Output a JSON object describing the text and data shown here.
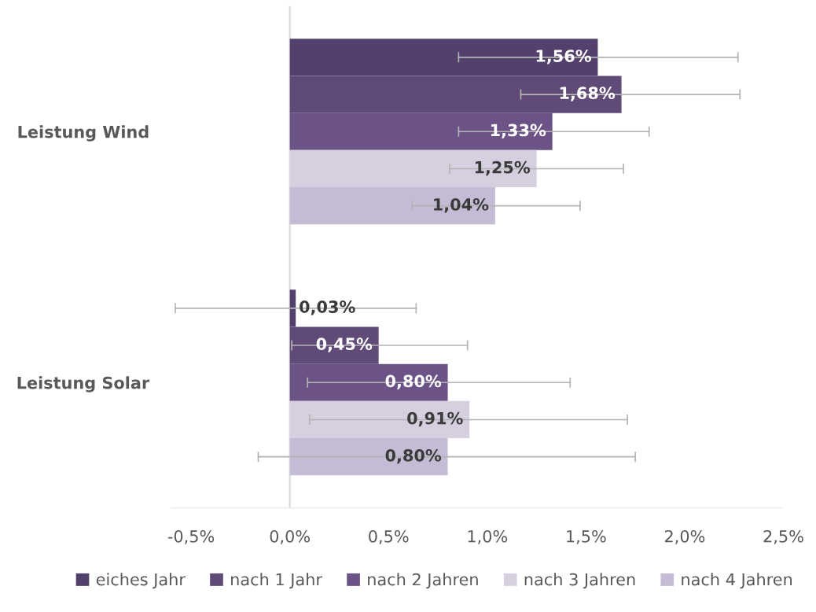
{
  "chart_data": {
    "type": "bar",
    "orientation": "horizontal",
    "categories": [
      "Leistung Wind",
      "Leistung Solar"
    ],
    "series": [
      {
        "name": "eiches Jahr",
        "color": "#54406c",
        "values": [
          1.56,
          0.03
        ],
        "value_labels": [
          "1,56%",
          "0,03%"
        ],
        "errors": [
          [
            0.855,
            2.27
          ],
          [
            -0.58,
            0.64
          ]
        ]
      },
      {
        "name": "nach 1 Jahr",
        "color": "#604a78",
        "values": [
          1.68,
          0.45
        ],
        "value_labels": [
          "1,68%",
          "0,45%"
        ],
        "errors": [
          [
            1.17,
            2.28
          ],
          [
            0.01,
            0.9
          ]
        ]
      },
      {
        "name": "nach 2 Jahren",
        "color": "#6b5287",
        "values": [
          1.33,
          0.8
        ],
        "value_labels": [
          "1,33%",
          "0,80%"
        ],
        "errors": [
          [
            0.855,
            1.82
          ],
          [
            0.09,
            1.42
          ]
        ]
      },
      {
        "name": "nach 3 Jahren",
        "color": "#d6cfe0",
        "values": [
          1.25,
          0.91
        ],
        "value_labels": [
          "1,25%",
          "0,91%"
        ],
        "errors": [
          [
            0.81,
            1.69
          ],
          [
            0.1,
            1.71
          ]
        ]
      },
      {
        "name": "nach 4 Jahren",
        "color": "#c4bcd4",
        "values": [
          1.04,
          0.8
        ],
        "value_labels": [
          "1,04%",
          "0,80%"
        ],
        "errors": [
          [
            0.62,
            1.47
          ],
          [
            -0.16,
            1.75
          ]
        ]
      }
    ],
    "xlim": [
      -0.6,
      2.5
    ],
    "xticks": [
      {
        "value": -0.5,
        "label": "-0,5%"
      },
      {
        "value": 0,
        "label": "0,0%"
      },
      {
        "value": 0.5,
        "label": "0,5%"
      },
      {
        "value": 1.0,
        "label": "1,0%"
      },
      {
        "value": 1.5,
        "label": "1,5%"
      },
      {
        "value": 2.0,
        "label": "2,0%"
      },
      {
        "value": 2.5,
        "label": "2,5%"
      }
    ],
    "ref_lines": [
      {
        "axis": "x",
        "value": 0,
        "color": "#d9d9d9"
      }
    ],
    "grid": false,
    "legend": "bottom"
  }
}
